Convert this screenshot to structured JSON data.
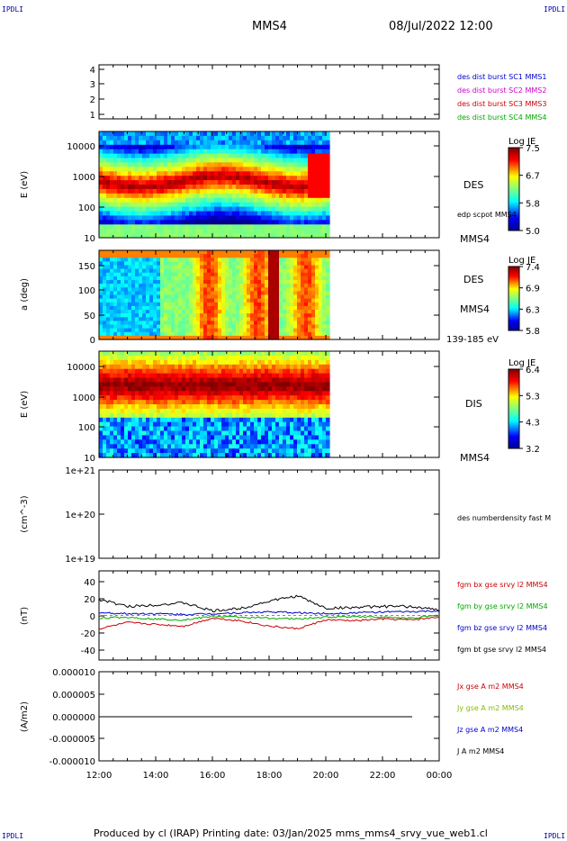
{
  "corners": {
    "top_left": "IPDLI",
    "top_right": "IPDLI",
    "bottom_left": "IPDLI",
    "bottom_right": "IPDLI"
  },
  "header": {
    "spacecraft": "MMS4",
    "datetime": "08/Jul/2022 12:00"
  },
  "footer": {
    "text": "Produced by cl (IRAP)   Printing date: 03/Jan/2025   mms_mms4_srvy_vue_web1.cl"
  },
  "panels": {
    "burst": {
      "yticks": [
        "4",
        "3",
        "2",
        "1"
      ],
      "legend": [
        {
          "text": "des dist burst SC1 MMS1",
          "color": "#0000cc"
        },
        {
          "text": "des dist burst SC2 MMS2",
          "color": "#cc00cc"
        },
        {
          "text": "des dist burst SC3 MMS3",
          "color": "#cc0000"
        },
        {
          "text": "des dist burst SC4 MMS4",
          "color": "#00aa00"
        }
      ]
    },
    "des_energy": {
      "ylabel": "E (eV)",
      "yticks": [
        "10000",
        "1000",
        "100",
        "10"
      ],
      "instrument": "DES",
      "extra": "edp scpot MMS4",
      "sc": "MMS4",
      "cbar_title": "Log JE",
      "cbar_ticks": [
        "7.5",
        "6.7",
        "5.8",
        "5.0"
      ]
    },
    "des_pitch": {
      "ylabel": "a (deg)",
      "yticks": [
        "150",
        "100",
        "50",
        "0"
      ],
      "instrument": "DES",
      "sc": "MMS4",
      "range": "139-185 eV",
      "cbar_title": "Log JE",
      "cbar_ticks": [
        "7.4",
        "6.9",
        "6.3",
        "5.8"
      ]
    },
    "dis_energy": {
      "ylabel": "E (eV)",
      "yticks": [
        "10000",
        "1000",
        "100",
        "10"
      ],
      "instrument": "DIS",
      "sc": "MMS4",
      "cbar_title": "Log JE",
      "cbar_ticks": [
        "6.4",
        "5.3",
        "4.3",
        "3.2"
      ]
    },
    "density": {
      "ylabel": "(cm^-3)",
      "yticks": [
        "1e+21",
        "1e+20",
        "1e+19"
      ],
      "legend": "des numberdensity fast M"
    },
    "bfield": {
      "ylabel": "(nT)",
      "yticks": [
        "40",
        "20",
        "0",
        "-20",
        "-40"
      ],
      "legend": [
        {
          "text": "fgm bx gse srvy l2 MMS4",
          "color": "#cc0000"
        },
        {
          "text": "fgm by gse srvy l2 MMS4",
          "color": "#00aa00"
        },
        {
          "text": "fgm bz gse srvy l2 MMS4",
          "color": "#0000cc"
        },
        {
          "text": "fgm bt gse srvy l2 MMS4",
          "color": "#000000"
        }
      ]
    },
    "current": {
      "ylabel": "(A/m2)",
      "yticks": [
        "0.000010",
        "0.000005",
        "0.000000",
        "-0.000005",
        "-0.000010"
      ],
      "legend": [
        {
          "text": "Jx gse A m2 MMS4",
          "color": "#cc0000"
        },
        {
          "text": "Jy gse A m2 MMS4",
          "color": "#88bb00"
        },
        {
          "text": "Jz gse A m2 MMS4",
          "color": "#0000cc"
        },
        {
          "text": "J A m2 MMS4",
          "color": "#000000"
        }
      ]
    }
  },
  "xticks": [
    "12:00",
    "14:00",
    "16:00",
    "18:00",
    "20:00",
    "22:00",
    "00:00"
  ],
  "chart_data": {
    "type": "line",
    "title": "MMS4",
    "x": [
      "12:00",
      "13:00",
      "14:00",
      "15:00",
      "16:00",
      "17:00",
      "18:00",
      "19:00",
      "20:00",
      "21:00",
      "22:00",
      "23:00",
      "00:00"
    ],
    "xlim": [
      "12:00",
      "00:00"
    ],
    "series": [
      {
        "name": "fgm bx gse srvy l2 MMS4",
        "color": "#cc0000",
        "values": [
          -15,
          -8,
          -10,
          -12,
          -3,
          -6,
          -12,
          -15,
          -5,
          -6,
          -4,
          -5,
          -2
        ]
      },
      {
        "name": "fgm by gse srvy l2 MMS4",
        "color": "#00aa00",
        "values": [
          -3,
          -2,
          -4,
          -5,
          -1,
          -2,
          -3,
          -4,
          -2,
          -1,
          -2,
          -3,
          0
        ]
      },
      {
        "name": "fgm bz gse srvy l2 MMS4",
        "color": "#0000cc",
        "values": [
          3,
          2,
          2,
          1,
          2,
          3,
          4,
          3,
          2,
          3,
          4,
          4,
          5
        ]
      },
      {
        "name": "fgm bt gse srvy l2 MMS4",
        "color": "#000000",
        "values": [
          18,
          10,
          12,
          14,
          5,
          8,
          16,
          22,
          8,
          9,
          10,
          10,
          6
        ]
      }
    ],
    "ylim": [
      -50,
      50
    ]
  }
}
